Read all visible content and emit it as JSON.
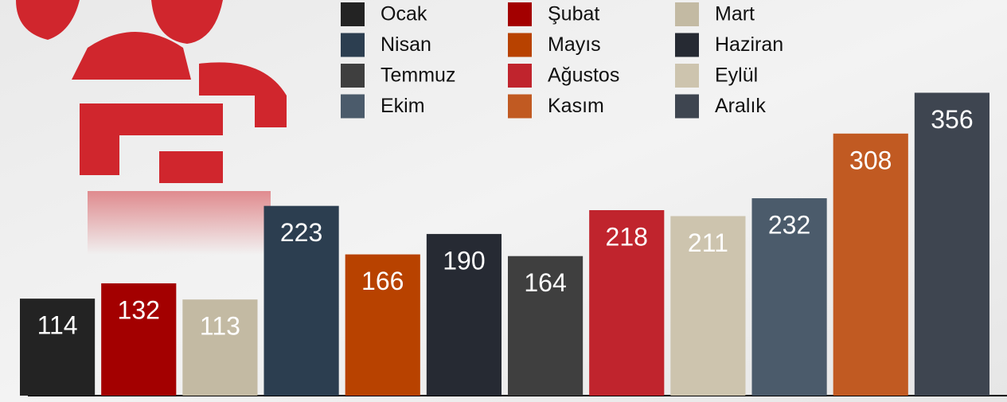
{
  "chart_data": {
    "type": "bar",
    "categories": [
      "Ocak",
      "Şubat",
      "Mart",
      "Nisan",
      "Mayıs",
      "Haziran",
      "Temmuz",
      "Ağustos",
      "Eylül",
      "Ekim",
      "Kasım",
      "Aralık"
    ],
    "values": [
      114,
      132,
      113,
      223,
      166,
      190,
      164,
      218,
      211,
      232,
      308,
      356
    ],
    "colors": [
      "#232323",
      "#a30000",
      "#c3baa3",
      "#2c3e50",
      "#b84200",
      "#262a33",
      "#3f3f3f",
      "#c0242d",
      "#cdc4ae",
      "#4b5b6b",
      "#c15a22",
      "#3e4550"
    ],
    "ylim": [
      0,
      465
    ]
  }
}
